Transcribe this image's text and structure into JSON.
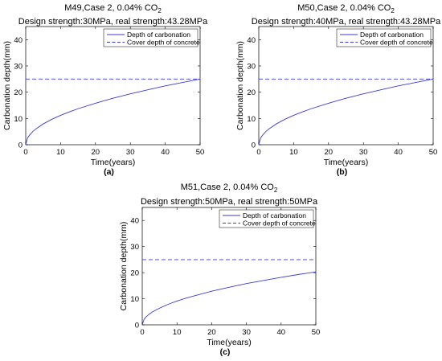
{
  "chart_data": [
    {
      "type": "line",
      "panel_label": "(a)",
      "title_line1": "M49,Case 2, 0.04% CO",
      "title_sub": "2",
      "title_line2": "Design strength:30MPa, real strength:43.28MPa",
      "xlabel": "Time(years)",
      "ylabel": "Carbonation depth(mm)",
      "xlim": [
        0,
        50
      ],
      "ylim": [
        0,
        45
      ],
      "x_ticks": [
        "0",
        "10",
        "20",
        "30",
        "40",
        "50"
      ],
      "y_ticks": [
        "0",
        "10",
        "20",
        "30",
        "40"
      ],
      "grid": false,
      "legend_position": "top-right",
      "series": [
        {
          "name": "Depth of carbonation",
          "style": "solid",
          "color": "#3a3ad6",
          "x": [
            0,
            0.5,
            1,
            2,
            3,
            5,
            7.5,
            10,
            12.5,
            15,
            20,
            25,
            30,
            35,
            40,
            45,
            50
          ],
          "y": [
            0,
            2.5,
            3.5,
            5.0,
            6.1,
            7.9,
            9.7,
            11.2,
            12.5,
            13.7,
            15.8,
            17.7,
            19.4,
            20.9,
            22.4,
            23.7,
            25.0
          ]
        },
        {
          "name": "Cover depth of concrete",
          "style": "dashed",
          "color": "#3a3ad6",
          "x": [
            0,
            50
          ],
          "y": [
            25,
            25
          ]
        }
      ]
    },
    {
      "type": "line",
      "panel_label": "(b)",
      "title_line1": "M50,Case 2, 0.04% CO",
      "title_sub": "2",
      "title_line2": "Design strength:40MPa, real strength:43.28MPa",
      "xlabel": "Time(years)",
      "ylabel": "Carbonation depth(mm)",
      "xlim": [
        0,
        50
      ],
      "ylim": [
        0,
        45
      ],
      "x_ticks": [
        "0",
        "10",
        "20",
        "30",
        "40",
        "50"
      ],
      "y_ticks": [
        "0",
        "10",
        "20",
        "30",
        "40"
      ],
      "grid": false,
      "legend_position": "top-right",
      "series": [
        {
          "name": "Depth of carbonation",
          "style": "solid",
          "color": "#3a3ad6",
          "x": [
            0,
            0.5,
            1,
            2,
            3,
            5,
            7.5,
            10,
            12.5,
            15,
            20,
            25,
            30,
            35,
            40,
            45,
            50
          ],
          "y": [
            0,
            2.5,
            3.5,
            5.0,
            6.1,
            7.9,
            9.7,
            11.2,
            12.5,
            13.7,
            15.8,
            17.7,
            19.4,
            20.9,
            22.4,
            23.7,
            25.0
          ]
        },
        {
          "name": "Cover depth of concrete",
          "style": "dashed",
          "color": "#3a3ad6",
          "x": [
            0,
            50
          ],
          "y": [
            25,
            25
          ]
        }
      ]
    },
    {
      "type": "line",
      "panel_label": "(c)",
      "title_line1": "M51,Case 2, 0.04% CO",
      "title_sub": "2",
      "title_line2": "Design strength:50MPa, real strength:50MPa",
      "xlabel": "Time(years)",
      "ylabel": "Carbonation depth(mm)",
      "xlim": [
        0,
        50
      ],
      "ylim": [
        0,
        45
      ],
      "x_ticks": [
        "0",
        "10",
        "20",
        "30",
        "40",
        "50"
      ],
      "y_ticks": [
        "0",
        "10",
        "20",
        "30",
        "40"
      ],
      "grid": false,
      "legend_position": "top-right",
      "series": [
        {
          "name": "Depth of carbonation",
          "style": "solid",
          "color": "#3a3ad6",
          "x": [
            0,
            0.5,
            1,
            2,
            3,
            5,
            7.5,
            10,
            12.5,
            15,
            20,
            25,
            30,
            35,
            40,
            45,
            50
          ],
          "y": [
            0,
            2.0,
            2.9,
            4.1,
            5.0,
            6.4,
            7.9,
            9.1,
            10.2,
            11.1,
            12.9,
            14.4,
            15.8,
            17.0,
            18.2,
            19.3,
            20.3
          ]
        },
        {
          "name": "Cover depth of concrete",
          "style": "dashed",
          "color": "#3a3ad6",
          "x": [
            0,
            50
          ],
          "y": [
            25,
            25
          ]
        }
      ]
    }
  ]
}
